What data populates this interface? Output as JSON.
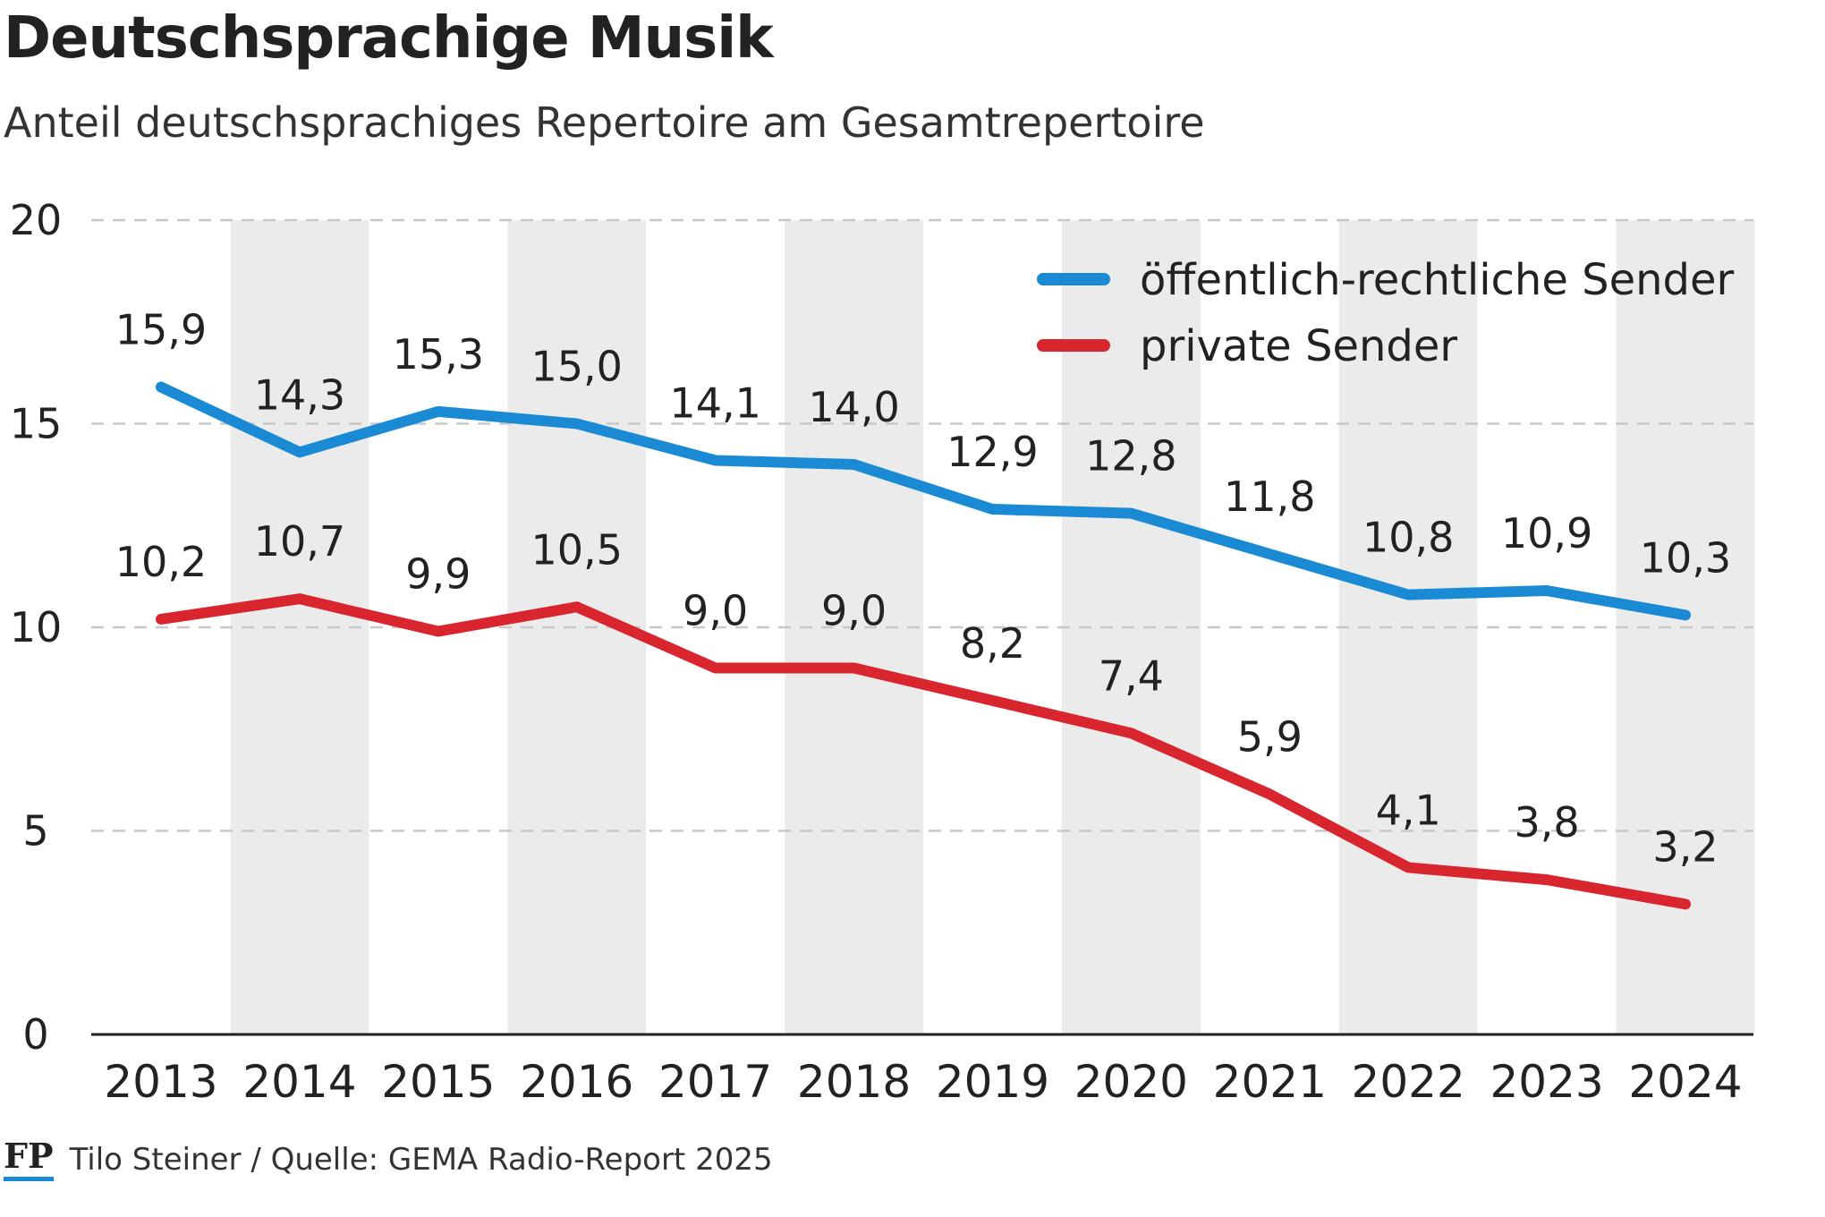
{
  "header": {
    "title": "Deutschsprachige Musik",
    "subtitle": "Anteil deutschsprachiges Repertoire am Gesamtrepertoire"
  },
  "footer": {
    "logo": "FP",
    "credit": "Tilo Steiner / Quelle: GEMA Radio-Report 2025"
  },
  "colors": {
    "series_public": "#1a8ad4",
    "series_private": "#d9252e",
    "band": "#ebebeb",
    "grid": "#c8c8c8",
    "axis": "#222222",
    "logo_underline": "#1a8ad4"
  },
  "chart_data": {
    "type": "line",
    "title": "Deutschsprachige Musik",
    "subtitle": "Anteil deutschsprachiges Repertoire am Gesamtrepertoire",
    "xlabel": "",
    "ylabel": "",
    "categories": [
      "2013",
      "2014",
      "2015",
      "2016",
      "2017",
      "2018",
      "2019",
      "2020",
      "2021",
      "2022",
      "2023",
      "2024"
    ],
    "ylim": [
      0,
      20
    ],
    "yticks": [
      "0",
      "5",
      "10",
      "15",
      "20"
    ],
    "grid": "horizontal-dashed",
    "alternating_bands": true,
    "legend_position": "top-right",
    "series": [
      {
        "name": "öffentlich-rechtliche Sender",
        "color": "#1a8ad4",
        "values": [
          15.9,
          14.3,
          15.3,
          15.0,
          14.1,
          14.0,
          12.9,
          12.8,
          11.8,
          10.8,
          10.9,
          10.3
        ],
        "labels": [
          "15,9",
          "14,3",
          "15,3",
          "15,0",
          "14,1",
          "14,0",
          "12,9",
          "12,8",
          "11,8",
          "10,8",
          "10,9",
          "10,3"
        ]
      },
      {
        "name": "private Sender",
        "color": "#d9252e",
        "values": [
          10.2,
          10.7,
          9.9,
          10.5,
          9.0,
          9.0,
          8.2,
          7.4,
          5.9,
          4.1,
          3.8,
          3.2
        ],
        "labels": [
          "10,2",
          "10,7",
          "9,9",
          "10,5",
          "9,0",
          "9,0",
          "8,2",
          "7,4",
          "5,9",
          "4,1",
          "3,8",
          "3,2"
        ]
      }
    ]
  }
}
